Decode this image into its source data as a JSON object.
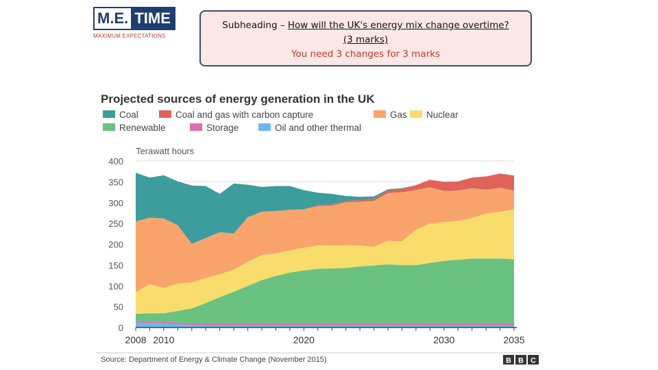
{
  "logo": {
    "me": "M.E.",
    "time": "TIME",
    "tagline": "MAXIMUM EXPECTATIONS"
  },
  "subheading": {
    "prefix": "Subheading – ",
    "question": "How will the UK's energy mix change overtime?",
    "marks": "(3 marks)",
    "instruction": "You need 3 changes for 3 marks"
  },
  "chart_data": {
    "type": "area",
    "stacked": true,
    "title": "Projected sources of energy generation in the UK",
    "ylabel": "Terawatt hours",
    "xlabel": "",
    "xlim": [
      2008,
      2035
    ],
    "ylim": [
      0,
      400
    ],
    "yticks": [
      0,
      50,
      100,
      150,
      200,
      250,
      300,
      350,
      400
    ],
    "xticks": [
      2008,
      2010,
      2020,
      2030,
      2035
    ],
    "grid": true,
    "legend_position": "top",
    "source": "Source: Department of Energy & Climate Change (November 2015)",
    "brand": [
      "B",
      "B",
      "C"
    ],
    "x": [
      2008,
      2009,
      2010,
      2011,
      2012,
      2013,
      2014,
      2015,
      2016,
      2017,
      2018,
      2019,
      2020,
      2021,
      2022,
      2023,
      2024,
      2025,
      2026,
      2027,
      2028,
      2029,
      2030,
      2031,
      2032,
      2033,
      2034,
      2035
    ],
    "series": [
      {
        "name": "Oil and other thermal",
        "color": "#6bb8ec",
        "values": [
          12,
          11,
          10,
          8,
          6,
          5,
          5,
          5,
          5,
          5,
          5,
          5,
          5,
          5,
          5,
          5,
          5,
          5,
          5,
          5,
          5,
          5,
          5,
          5,
          5,
          5,
          5,
          5
        ]
      },
      {
        "name": "Storage",
        "color": "#dc6fb0",
        "values": [
          4,
          4,
          4,
          4,
          4,
          4,
          4,
          4,
          4,
          4,
          4,
          4,
          4,
          4,
          4,
          4,
          4,
          4,
          4,
          4,
          4,
          4,
          4,
          4,
          4,
          4,
          4,
          4
        ]
      },
      {
        "name": "Renewable",
        "color": "#6ac280",
        "values": [
          17,
          19,
          20,
          28,
          36,
          50,
          64,
          77,
          91,
          105,
          115,
          123,
          128,
          132,
          133,
          134,
          138,
          140,
          143,
          141,
          141,
          146,
          151,
          154,
          157,
          157,
          157,
          155
        ]
      },
      {
        "name": "Nuclear",
        "color": "#f8dd6c",
        "values": [
          52,
          70,
          61,
          66,
          62,
          60,
          55,
          53,
          58,
          60,
          54,
          53,
          55,
          56,
          55,
          55,
          50,
          45,
          56,
          57,
          85,
          95,
          93,
          93,
          97,
          108,
          112,
          120
        ]
      },
      {
        "name": "Gas",
        "color": "#f8a46c",
        "values": [
          170,
          160,
          167,
          140,
          93,
          96,
          101,
          87,
          107,
          104,
          102,
          98,
          92,
          95,
          96,
          103,
          105,
          110,
          115,
          118,
          95,
          87,
          75,
          73,
          72,
          57,
          58,
          45
        ]
      },
      {
        "name": "Coal and gas with carbon capture",
        "color": "#e0625a",
        "values": [
          0,
          0,
          0,
          0,
          0,
          0,
          0,
          0,
          0,
          0,
          0,
          0,
          0,
          2,
          3,
          3,
          4,
          5,
          6,
          8,
          12,
          18,
          22,
          22,
          25,
          32,
          34,
          36
        ]
      },
      {
        "name": "Coal",
        "color": "#3d9c9c",
        "values": [
          117,
          96,
          104,
          105,
          140,
          125,
          92,
          120,
          78,
          60,
          60,
          57,
          46,
          30,
          25,
          12,
          8,
          6,
          3,
          2,
          0,
          0,
          0,
          0,
          0,
          0,
          0,
          0
        ]
      }
    ],
    "legend_order": [
      "Coal",
      "Coal and gas with carbon capture",
      "Gas",
      "Nuclear",
      "Renewable",
      "Storage",
      "Oil and other thermal"
    ]
  }
}
